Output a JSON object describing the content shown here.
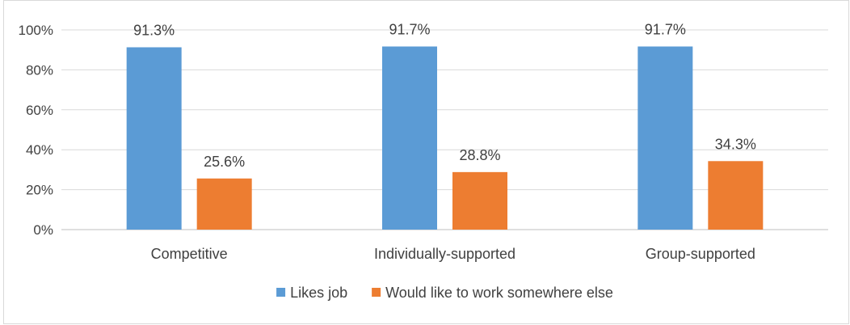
{
  "chart_data": {
    "type": "bar",
    "title": "",
    "xlabel": "",
    "ylabel": "",
    "categories": [
      "Competitive",
      "Individually-supported",
      "Group-supported"
    ],
    "series": [
      {
        "name": "Likes job",
        "values": [
          91.3,
          91.7,
          91.7
        ],
        "labels": [
          "91.3%",
          "91.7%",
          "91.7%"
        ],
        "color": "#5b9bd5"
      },
      {
        "name": "Would like to work somewhere else",
        "values": [
          25.6,
          28.8,
          34.3
        ],
        "labels": [
          "25.6%",
          "28.8%",
          "34.3%"
        ],
        "color": "#ed7d31"
      }
    ],
    "ylim": [
      0,
      100
    ],
    "yticks": [
      "0%",
      "20%",
      "40%",
      "60%",
      "80%",
      "100%"
    ],
    "grid": true,
    "legend_position": "bottom"
  }
}
